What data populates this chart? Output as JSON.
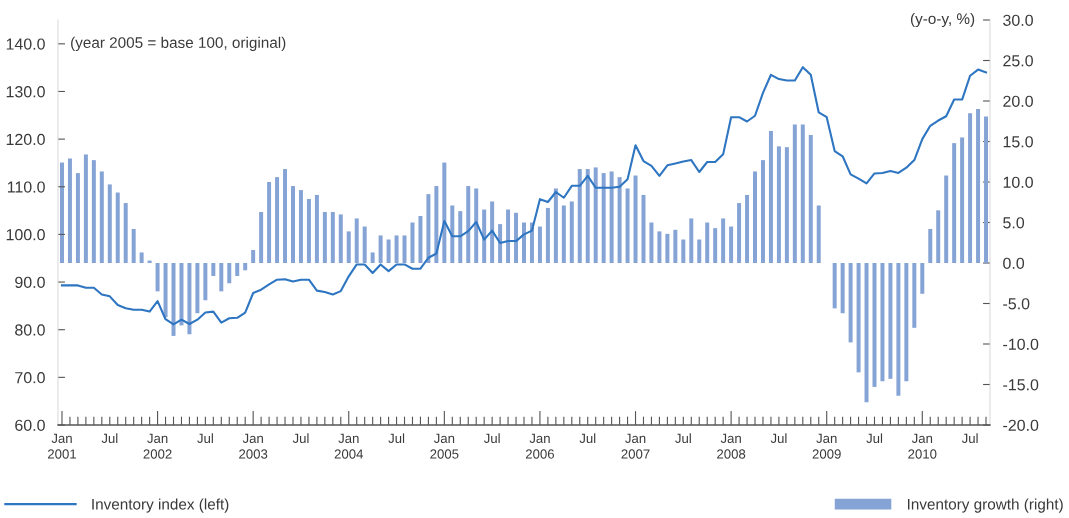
{
  "chart_data": {
    "type": "bar",
    "categories": [
      "Jan\n2001",
      null,
      null,
      null,
      null,
      null,
      "Jul",
      null,
      null,
      null,
      null,
      null,
      "Jan\n2002",
      null,
      null,
      null,
      null,
      null,
      "Jul",
      null,
      null,
      null,
      null,
      null,
      "Jan\n2003",
      null,
      null,
      null,
      null,
      null,
      "Jul",
      null,
      null,
      null,
      null,
      null,
      "Jan\n2004",
      null,
      null,
      null,
      null,
      null,
      "Jul",
      null,
      null,
      null,
      null,
      null,
      "Jan\n2005",
      null,
      null,
      null,
      null,
      null,
      "Jul",
      null,
      null,
      null,
      null,
      null,
      "Jan\n2006",
      null,
      null,
      null,
      null,
      null,
      "Jul",
      null,
      null,
      null,
      null,
      null,
      "Jan\n2007",
      null,
      null,
      null,
      null,
      null,
      "Jul",
      null,
      null,
      null,
      null,
      null,
      "Jan\n2008",
      null,
      null,
      null,
      null,
      null,
      "Jul",
      null,
      null,
      null,
      null,
      null,
      "Jan\n2009",
      null,
      null,
      null,
      null,
      null,
      "Jul",
      null,
      null,
      null,
      null,
      null,
      "Jan\n2010",
      null,
      null,
      null,
      null,
      null,
      "Jul",
      null,
      null
    ],
    "ylabel": "(year 2005 = base 100, original)",
    "y2label": "(y-o-y, %)",
    "ylim": [
      60,
      145
    ],
    "yticks": [
      {
        "value": 60,
        "label": "60.0"
      },
      {
        "value": 70,
        "label": "70.0"
      },
      {
        "value": 80,
        "label": "80.0"
      },
      {
        "value": 90,
        "label": "90.0"
      },
      {
        "value": 100,
        "label": "100.0"
      },
      {
        "value": 110,
        "label": "110.0"
      },
      {
        "value": 120,
        "label": "120.0"
      },
      {
        "value": 130,
        "label": "130.0"
      },
      {
        "value": 140,
        "label": "140.0"
      }
    ],
    "y2lim": [
      -20,
      30
    ],
    "y2ticks": [
      {
        "value": -20,
        "label": "-20.0"
      },
      {
        "value": -15,
        "label": "-15.0"
      },
      {
        "value": -10,
        "label": "-10.0"
      },
      {
        "value": -5,
        "label": "-5.0"
      },
      {
        "value": 0,
        "label": "0.0"
      },
      {
        "value": 5,
        "label": "5.0"
      },
      {
        "value": 10,
        "label": "10.0"
      },
      {
        "value": 15,
        "label": "15.0"
      },
      {
        "value": 20,
        "label": "20.0"
      },
      {
        "value": 25,
        "label": "25.0"
      },
      {
        "value": 30,
        "label": "30.0"
      }
    ],
    "legend": "bottom",
    "series": [
      {
        "name": "Inventory index (left)",
        "type": "line",
        "color": "#2e75c2",
        "values": [
          89.3,
          89.3,
          89.3,
          88.8,
          88.8,
          87.4,
          87.0,
          85.2,
          84.5,
          84.2,
          84.2,
          83.8,
          86.0,
          82.2,
          81.1,
          82.1,
          81.2,
          82.1,
          83.6,
          83.8,
          81.5,
          82.4,
          82.5,
          83.6,
          87.7,
          88.4,
          89.5,
          90.5,
          90.6,
          90.1,
          90.5,
          90.5,
          88.2,
          87.9,
          87.4,
          88.1,
          91.2,
          93.7,
          93.7,
          91.9,
          93.7,
          92.3,
          93.7,
          93.7,
          92.8,
          92.8,
          95.1,
          96.0,
          102.8,
          99.6,
          99.6,
          100.7,
          102.6,
          98.9,
          100.8,
          98.2,
          98.6,
          98.6,
          100.0,
          100.8,
          107.4,
          106.8,
          108.9,
          107.7,
          110.2,
          110.2,
          112.3,
          109.8,
          109.8,
          109.8,
          110.0,
          111.6,
          118.7,
          115.4,
          114.4,
          112.3,
          114.5,
          114.9,
          115.3,
          115.6,
          113.1,
          115.2,
          115.2,
          116.8,
          124.6,
          124.6,
          123.7,
          124.9,
          129.7,
          133.5,
          132.6,
          132.3,
          132.3,
          135.1,
          133.5,
          125.6,
          124.6,
          117.5,
          116.4,
          112.6,
          111.7,
          110.7,
          112.8,
          112.9,
          113.3,
          112.9,
          114.0,
          115.6,
          120.0,
          122.8,
          123.9,
          124.8,
          128.3,
          128.3,
          133.3,
          134.6,
          134.0
        ]
      },
      {
        "name": "Inventory growth (right)",
        "axis": "y2",
        "color": "#85a3d5",
        "values": [
          12.4,
          12.9,
          11.1,
          13.4,
          12.7,
          11.3,
          9.7,
          8.7,
          7.4,
          4.2,
          1.3,
          0.3,
          -3.5,
          -6.7,
          -9.0,
          -7.7,
          -8.8,
          -6.2,
          -4.6,
          -1.6,
          -3.5,
          -2.5,
          -1.6,
          -0.9,
          1.6,
          6.3,
          10.0,
          10.6,
          11.6,
          9.5,
          9.0,
          7.9,
          8.4,
          6.3,
          6.3,
          6.0,
          3.9,
          5.5,
          4.5,
          1.3,
          3.4,
          2.9,
          3.4,
          3.4,
          5.0,
          5.8,
          8.5,
          9.5,
          12.4,
          7.1,
          6.4,
          9.5,
          9.2,
          6.6,
          7.6,
          4.8,
          6.6,
          6.2,
          5.0,
          5.0,
          4.5,
          6.8,
          9.2,
          7.1,
          7.6,
          11.6,
          11.6,
          11.8,
          11.1,
          11.3,
          10.6,
          9.2,
          10.8,
          8.4,
          5.0,
          3.9,
          3.6,
          4.1,
          2.9,
          5.5,
          2.9,
          5.0,
          4.3,
          5.5,
          4.5,
          7.4,
          8.4,
          11.3,
          12.7,
          16.3,
          14.4,
          14.3,
          17.1,
          17.1,
          15.8,
          7.1,
          null,
          -5.6,
          -6.2,
          -9.8,
          -13.5,
          -17.2,
          -15.3,
          -14.6,
          -14.3,
          -16.4,
          -14.6,
          -8.0,
          -3.8,
          4.2,
          6.5,
          10.8,
          14.8,
          15.5,
          18.5,
          19.0,
          18.1
        ]
      }
    ]
  }
}
